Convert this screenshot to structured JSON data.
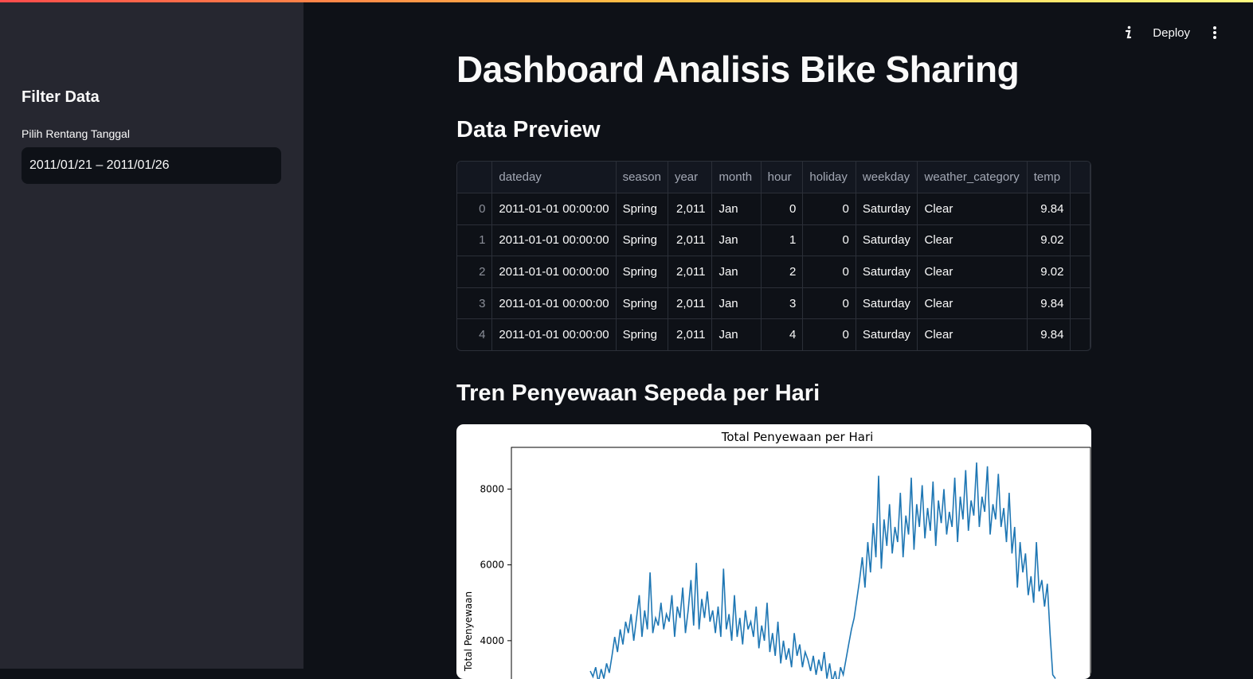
{
  "toolbar": {
    "deploy_label": "Deploy",
    "info_icon": "info-icon",
    "menu_icon": "kebab-menu-icon"
  },
  "sidebar": {
    "heading": "Filter Data",
    "date_label": "Pilih Rentang Tanggal",
    "date_value": "2011/01/21 – 2011/01/26"
  },
  "main": {
    "title": "Dashboard Analisis Bike Sharing",
    "preview_heading": "Data Preview",
    "trend_heading": "Tren Penyewaan Sepeda per Hari"
  },
  "table": {
    "columns": [
      "",
      "dateday",
      "season",
      "year",
      "month",
      "hour",
      "holiday",
      "weekday",
      "weather_category",
      "temp"
    ],
    "rows": [
      [
        "0",
        "2011-01-01 00:00:00",
        "Spring",
        "2,011",
        "Jan",
        "0",
        "0",
        "Saturday",
        "Clear",
        "9.84"
      ],
      [
        "1",
        "2011-01-01 00:00:00",
        "Spring",
        "2,011",
        "Jan",
        "1",
        "0",
        "Saturday",
        "Clear",
        "9.02"
      ],
      [
        "2",
        "2011-01-01 00:00:00",
        "Spring",
        "2,011",
        "Jan",
        "2",
        "0",
        "Saturday",
        "Clear",
        "9.02"
      ],
      [
        "3",
        "2011-01-01 00:00:00",
        "Spring",
        "2,011",
        "Jan",
        "3",
        "0",
        "Saturday",
        "Clear",
        "9.84"
      ],
      [
        "4",
        "2011-01-01 00:00:00",
        "Spring",
        "2,011",
        "Jan",
        "4",
        "0",
        "Saturday",
        "Clear",
        "9.84"
      ]
    ]
  },
  "chart_data": {
    "type": "line",
    "title": "Total Penyewaan per Hari",
    "ylabel": "Total Penyewaan",
    "xlabel": "",
    "yticks": [
      4000,
      6000,
      8000
    ],
    "ylim": [
      2800,
      9100
    ],
    "line_color": "#1f77b4",
    "grid": false,
    "series": [
      {
        "values": [
          3200,
          3050,
          3300,
          2900,
          3250,
          3000,
          3400,
          3150,
          3600,
          4100,
          3700,
          4300,
          3900,
          4500,
          4200,
          4700,
          4000,
          4600,
          5200,
          4100,
          4800,
          4300,
          5800,
          4200,
          4600,
          4400,
          5000,
          4300,
          4700,
          4500,
          5200,
          4100,
          4900,
          4600,
          5400,
          4200,
          4800,
          5600,
          4400,
          6050,
          4300,
          5100,
          4600,
          5300,
          4500,
          4800,
          4200,
          4900,
          4100,
          5900,
          4300,
          4700,
          4000,
          5200,
          4100,
          4600,
          3900,
          4800,
          4300,
          4500,
          4100,
          4900,
          3800,
          4400,
          4000,
          5000,
          3700,
          4200,
          3600,
          4500,
          3400,
          4000,
          3500,
          3800,
          3300,
          4200,
          3600,
          3900,
          3300,
          3700,
          3500,
          3200,
          3600,
          3100,
          3500,
          3200,
          3700,
          3000,
          3400,
          2900,
          3200,
          2800,
          3300,
          3100,
          3500,
          3900,
          4300,
          4600,
          5100,
          5600,
          6200,
          5400,
          6600,
          5800,
          7100,
          6200,
          8350,
          5900,
          7200,
          6500,
          7600,
          6300,
          7000,
          6600,
          7900,
          6200,
          7300,
          6800,
          8300,
          6400,
          7600,
          7000,
          8100,
          6700,
          7500,
          6900,
          8200,
          6500,
          7700,
          7100,
          8000,
          6800,
          7400,
          7000,
          8300,
          6600,
          7800,
          7200,
          8500,
          6900,
          7700,
          7300,
          8700,
          7000,
          7800,
          7400,
          8600,
          6800,
          7600,
          7200,
          8400,
          7000,
          7500,
          6600,
          7900,
          6300,
          7000,
          5400,
          6600,
          5800,
          6300,
          5200,
          5700,
          5000,
          6600,
          5300,
          5600,
          4900,
          5500,
          4200,
          3100,
          3000
        ]
      }
    ]
  }
}
